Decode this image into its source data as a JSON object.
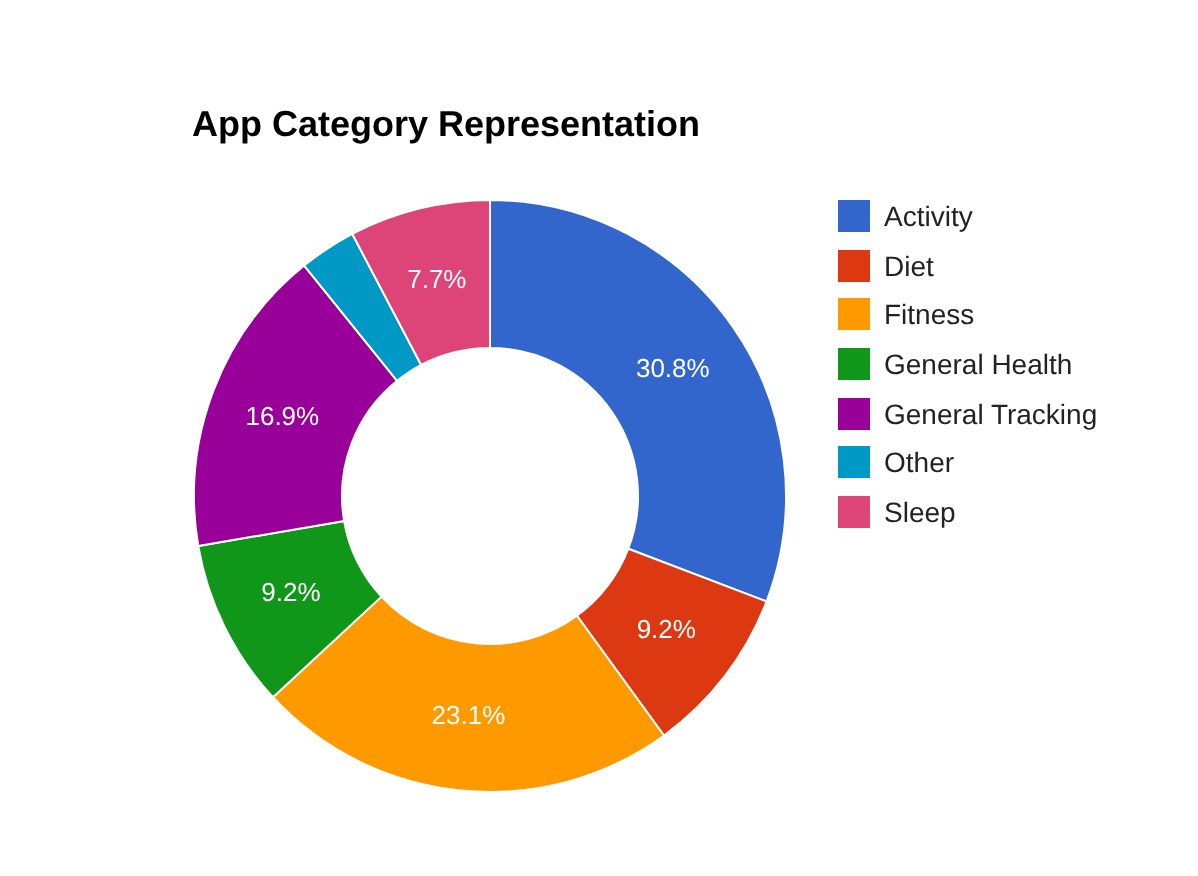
{
  "chart_data": {
    "type": "donut",
    "title": "App Category Representation",
    "categories": [
      "Activity",
      "Diet",
      "Fitness",
      "General Health",
      "General Tracking",
      "Other",
      "Sleep"
    ],
    "values": [
      30.8,
      9.2,
      23.1,
      9.2,
      16.9,
      3.1,
      7.7
    ],
    "colors": [
      "#3366cc",
      "#dc3912",
      "#ff9900",
      "#109618",
      "#990099",
      "#0099c6",
      "#dd4477"
    ],
    "value_labels": [
      "30.8%",
      "9.2%",
      "23.1%",
      "9.2%",
      "16.9%",
      null,
      "7.7%"
    ],
    "legend": "right"
  }
}
